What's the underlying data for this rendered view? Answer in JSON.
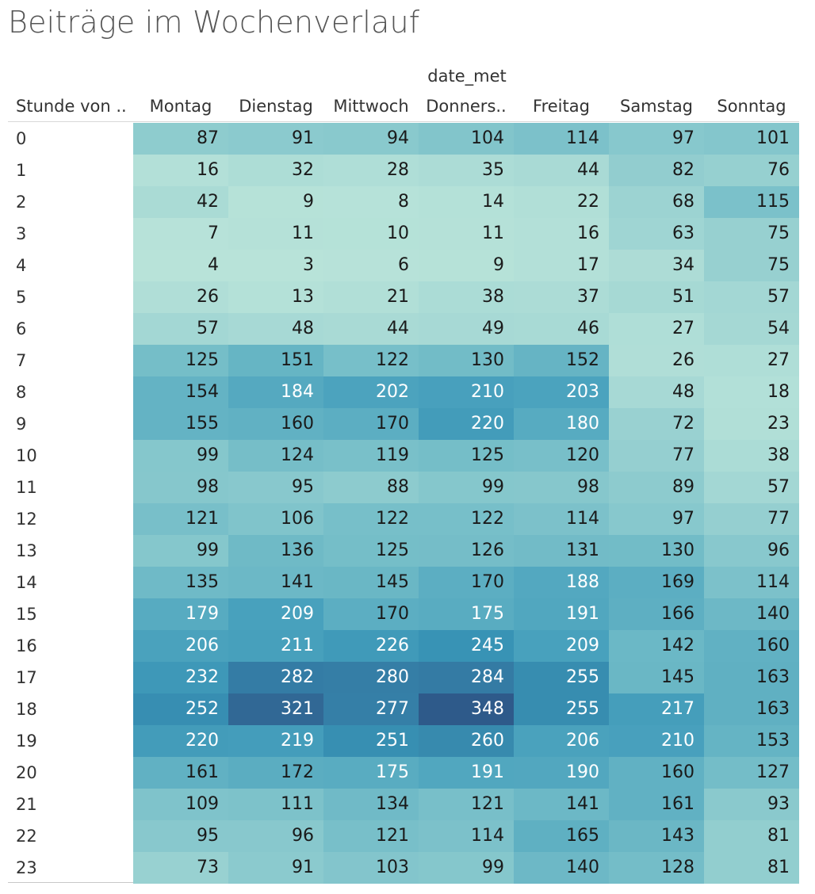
{
  "title": "Beiträge im Wochenverlauf",
  "chart_data": {
    "type": "heatmap",
    "title": "Beiträge im Wochenverlauf",
    "column_group_label": "date_met",
    "row_header": "Stunde von ..",
    "columns": [
      "Montag",
      "Dienstag",
      "Mittwoch",
      "Donners..",
      "Freitag",
      "Samstag",
      "Sonntag"
    ],
    "rows": [
      "0",
      "1",
      "2",
      "3",
      "4",
      "5",
      "6",
      "7",
      "8",
      "9",
      "10",
      "11",
      "12",
      "13",
      "14",
      "15",
      "16",
      "17",
      "18",
      "19",
      "20",
      "21",
      "22",
      "23"
    ],
    "values": [
      [
        87,
        91,
        94,
        104,
        114,
        97,
        101
      ],
      [
        16,
        32,
        28,
        35,
        44,
        82,
        76
      ],
      [
        42,
        9,
        8,
        14,
        22,
        68,
        115
      ],
      [
        7,
        11,
        10,
        11,
        16,
        63,
        75
      ],
      [
        4,
        3,
        6,
        9,
        17,
        34,
        75
      ],
      [
        26,
        13,
        21,
        38,
        37,
        51,
        57
      ],
      [
        57,
        48,
        44,
        49,
        46,
        27,
        54
      ],
      [
        125,
        151,
        122,
        130,
        152,
        26,
        27
      ],
      [
        154,
        184,
        202,
        210,
        203,
        48,
        18
      ],
      [
        155,
        160,
        170,
        220,
        180,
        72,
        23
      ],
      [
        99,
        124,
        119,
        125,
        120,
        77,
        38
      ],
      [
        98,
        95,
        88,
        99,
        98,
        89,
        57
      ],
      [
        121,
        106,
        122,
        122,
        114,
        97,
        77
      ],
      [
        99,
        136,
        125,
        126,
        131,
        130,
        96
      ],
      [
        135,
        141,
        145,
        170,
        188,
        169,
        114
      ],
      [
        179,
        209,
        170,
        175,
        191,
        166,
        140
      ],
      [
        206,
        211,
        226,
        245,
        209,
        142,
        160
      ],
      [
        232,
        282,
        280,
        284,
        255,
        145,
        163
      ],
      [
        252,
        321,
        277,
        348,
        255,
        217,
        163
      ],
      [
        220,
        219,
        251,
        260,
        206,
        210,
        153
      ],
      [
        161,
        172,
        175,
        191,
        190,
        160,
        127
      ],
      [
        109,
        111,
        134,
        121,
        141,
        161,
        93
      ],
      [
        95,
        96,
        121,
        114,
        165,
        143,
        81
      ],
      [
        73,
        91,
        103,
        99,
        140,
        128,
        81
      ]
    ],
    "color_scale": {
      "min_value": 3,
      "max_value": 348,
      "low_color": "#b8e3d9",
      "high_color": "#2e5a8a",
      "text_dark": "#1a1a1a",
      "text_light": "#ffffff"
    }
  }
}
